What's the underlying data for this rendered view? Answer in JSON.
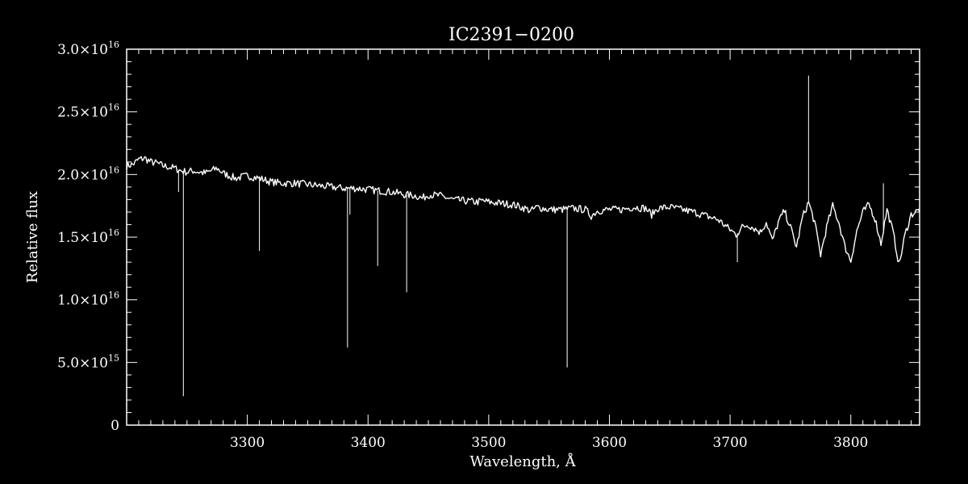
{
  "chart_data": {
    "type": "line",
    "title": "IC2391−0200",
    "xlabel": "Wavelength, Å",
    "ylabel": "Relative flux",
    "xlim": [
      3200,
      3857
    ],
    "ylim": [
      0,
      3e+16
    ],
    "x_major_ticks": [
      3300,
      3400,
      3500,
      3600,
      3700,
      3800
    ],
    "x_tick_labels": [
      "3300",
      "3400",
      "3500",
      "3600",
      "3700",
      "3800"
    ],
    "x_minor_step": 10,
    "y_major_ticks": [
      0,
      5000000000000000.0,
      1e+16,
      1.5e+16,
      2e+16,
      2.5e+16,
      3e+16
    ],
    "y_tick_labels": [
      {
        "mantissa": "0",
        "exponent": ""
      },
      {
        "mantissa": "5.0×10",
        "exponent": "15"
      },
      {
        "mantissa": "1.0×10",
        "exponent": "16"
      },
      {
        "mantissa": "1.5×10",
        "exponent": "16"
      },
      {
        "mantissa": "2.0×10",
        "exponent": "16"
      },
      {
        "mantissa": "2.5×10",
        "exponent": "16"
      },
      {
        "mantissa": "3.0×10",
        "exponent": "16"
      }
    ],
    "y_minor_step": 1000000000000000.0,
    "grid": false,
    "colors": {
      "background": "#000000",
      "foreground": "#ffffff"
    },
    "series": [
      {
        "x": [
          3200,
          3205,
          3210,
          3215,
          3220,
          3225,
          3230,
          3235,
          3240,
          3245,
          3250,
          3255,
          3260,
          3265,
          3270,
          3275,
          3280,
          3285,
          3290,
          3295,
          3300,
          3310,
          3320,
          3330,
          3340,
          3350,
          3360,
          3370,
          3380,
          3390,
          3400,
          3410,
          3420,
          3430,
          3440,
          3445,
          3450,
          3460,
          3470,
          3480,
          3490,
          3495,
          3500,
          3510,
          3520,
          3530,
          3535,
          3540,
          3550,
          3560,
          3570,
          3580,
          3585,
          3590,
          3600,
          3610,
          3620,
          3630,
          3635,
          3640,
          3650,
          3660,
          3670,
          3680,
          3690,
          3695,
          3700,
          3705,
          3710,
          3715,
          3720,
          3725,
          3730,
          3735,
          3740,
          3745,
          3750,
          3755,
          3760,
          3765,
          3770,
          3775,
          3780,
          3785,
          3790,
          3795,
          3800,
          3805,
          3810,
          3815,
          3820,
          3825,
          3830,
          3835,
          3840,
          3845,
          3850,
          3857
        ],
        "y": [
          2.07e+16,
          2.08e+16,
          2.12e+16,
          2.13e+16,
          2.1e+16,
          2.09e+16,
          2.07e+16,
          2.06e+16,
          2.05e+16,
          2.03e+16,
          2.02e+16,
          2.03e+16,
          2.02e+16,
          2.01e+16,
          2.03e+16,
          2.05e+16,
          2.01e+16,
          1.99e+16,
          1.97e+16,
          1.98e+16,
          1.99e+16,
          1.97e+16,
          1.94e+16,
          1.93e+16,
          1.93e+16,
          1.92e+16,
          1.91e+16,
          1.9e+16,
          1.89e+16,
          1.89e+16,
          1.88e+16,
          1.87e+16,
          1.86e+16,
          1.84e+16,
          1.83e+16,
          1.81e+16,
          1.84e+16,
          1.83e+16,
          1.8e+16,
          1.79e+16,
          1.78e+16,
          1.79e+16,
          1.78e+16,
          1.77e+16,
          1.76e+16,
          1.73e+16,
          1.71e+16,
          1.74e+16,
          1.72e+16,
          1.72e+16,
          1.73e+16,
          1.72e+16,
          1.67e+16,
          1.71e+16,
          1.72e+16,
          1.72e+16,
          1.74e+16,
          1.73e+16,
          1.68e+16,
          1.73e+16,
          1.74e+16,
          1.72e+16,
          1.7e+16,
          1.67e+16,
          1.64e+16,
          1.6e+16,
          1.56e+16,
          1.52e+16,
          1.58e+16,
          1.6e+16,
          1.57e+16,
          1.54e+16,
          1.62e+16,
          1.47e+16,
          1.62e+16,
          1.71e+16,
          1.58e+16,
          1.42e+16,
          1.66e+16,
          1.78e+16,
          1.62e+16,
          1.36e+16,
          1.58e+16,
          1.75e+16,
          1.62e+16,
          1.43e+16,
          1.31e+16,
          1.55e+16,
          1.7e+16,
          1.76e+16,
          1.65e+16,
          1.45e+16,
          1.72e+16,
          1.54e+16,
          1.28e+16,
          1.52e+16,
          1.68e+16,
          1.72e+16
        ]
      }
    ],
    "absorption_spikes": [
      {
        "x": 3243,
        "y_min": 1.86e+16
      },
      {
        "x": 3247,
        "y_min": 2300000000000000.0
      },
      {
        "x": 3310,
        "y_min": 1.39e+16
      },
      {
        "x": 3383,
        "y_min": 6200000000000000.0
      },
      {
        "x": 3385,
        "y_min": 1.68e+16
      },
      {
        "x": 3408,
        "y_min": 1.27e+16
      },
      {
        "x": 3432,
        "y_min": 1.06e+16
      },
      {
        "x": 3565,
        "y_min": 4600000000000000.0
      },
      {
        "x": 3706,
        "y_min": 1.3e+16
      }
    ],
    "emission_spikes": [
      {
        "x": 3765,
        "y_max": 2.79e+16
      },
      {
        "x": 3827,
        "y_max": 1.93e+16
      }
    ]
  }
}
